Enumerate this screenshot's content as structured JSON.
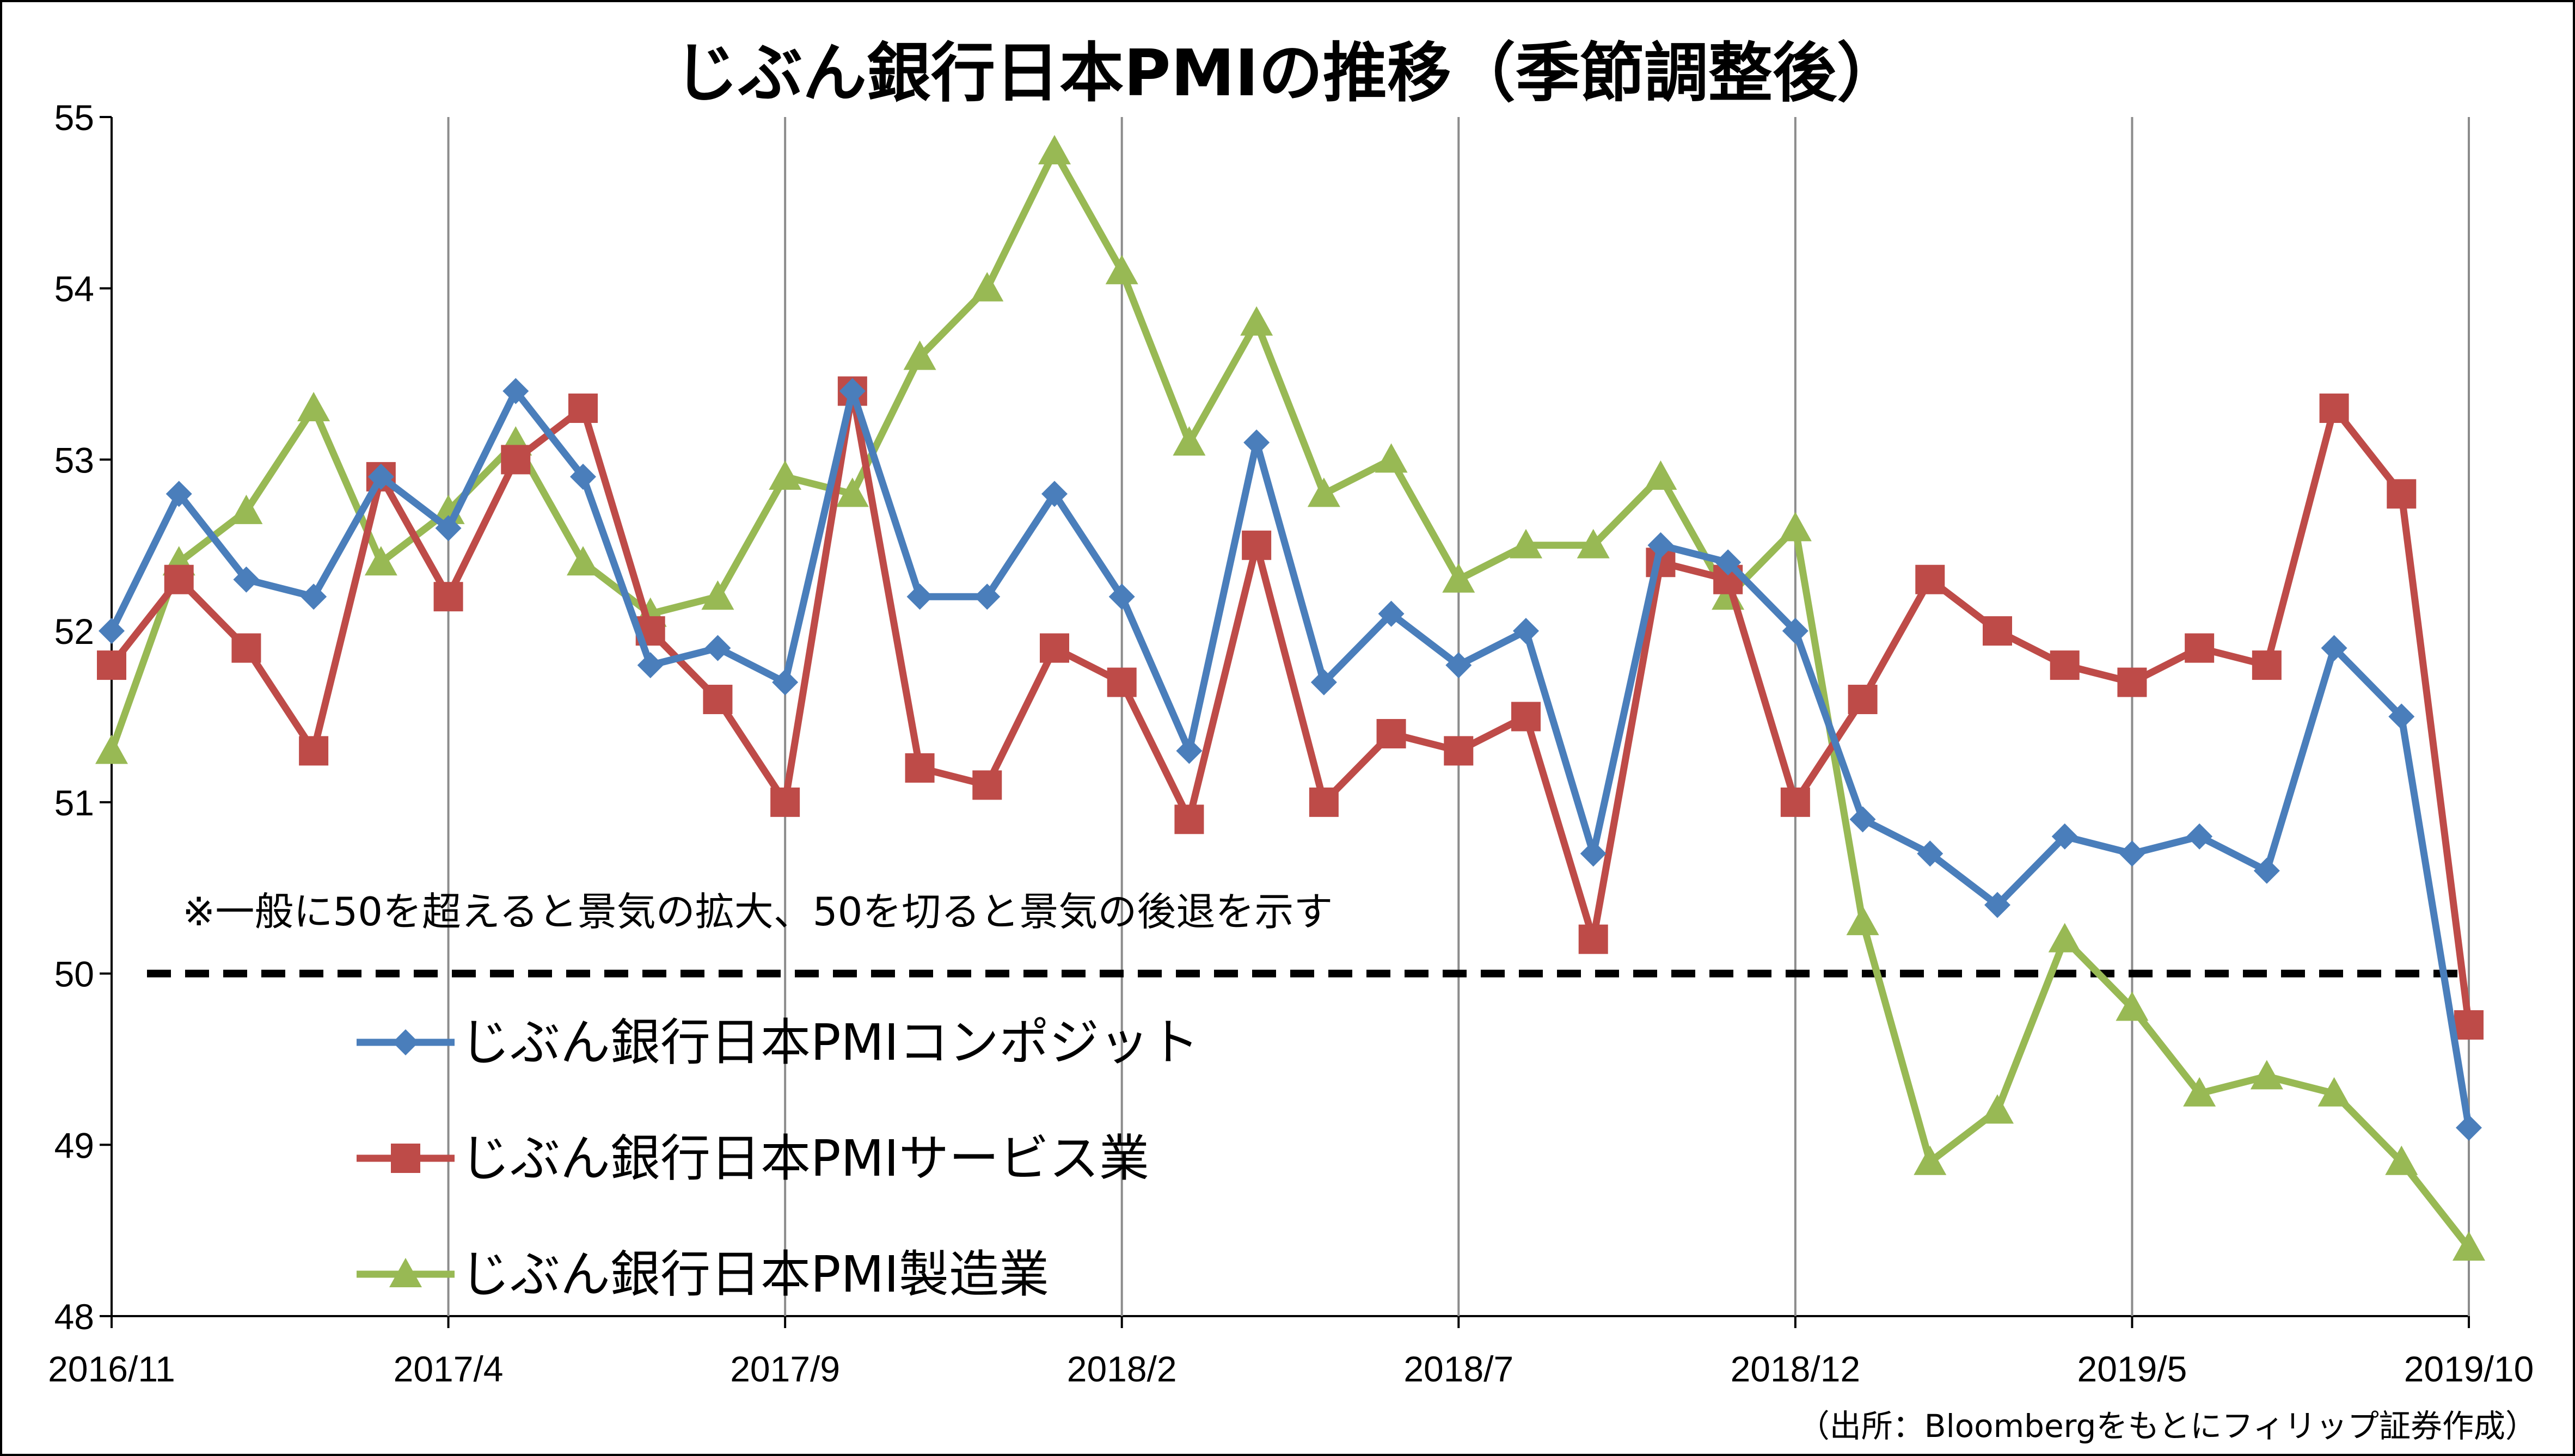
{
  "colors": {
    "composite": "#4a7ebb",
    "services": "#be4b48",
    "manufacturing": "#98b954",
    "grid": "#8c8c8c",
    "threshold": "#000000"
  },
  "chart_data": {
    "type": "line",
    "title": "じぶん銀行日本PMIの推移（季節調整後）",
    "xlabel": "",
    "ylabel": "",
    "ylim": [
      48,
      55
    ],
    "yticks": [
      "48",
      "49",
      "50",
      "51",
      "52",
      "53",
      "54",
      "55"
    ],
    "x": [
      "2016/11",
      "2016/12",
      "2017/1",
      "2017/2",
      "2017/3",
      "2017/4",
      "2017/5",
      "2017/6",
      "2017/7",
      "2017/8",
      "2017/9",
      "2017/10",
      "2017/11",
      "2017/12",
      "2018/1",
      "2018/2",
      "2018/3",
      "2018/4",
      "2018/5",
      "2018/6",
      "2018/7",
      "2018/8",
      "2018/9",
      "2018/10",
      "2018/11",
      "2018/12",
      "2019/1",
      "2019/2",
      "2019/3",
      "2019/4",
      "2019/5",
      "2019/6",
      "2019/7",
      "2019/8",
      "2019/9",
      "2019/10"
    ],
    "xtick_labels": [
      "2016/11",
      "2017/4",
      "2017/9",
      "2018/2",
      "2018/7",
      "2018/12",
      "2019/5",
      "2019/10"
    ],
    "grid": "vertical",
    "legend_position": "bottom-left",
    "series": [
      {
        "name": "じぶん銀行日本PMIコンポジット",
        "color": "#4a7ebb",
        "marker": "diamond",
        "values": [
          52.0,
          52.8,
          52.3,
          52.2,
          52.9,
          52.6,
          53.4,
          52.9,
          51.8,
          51.9,
          51.7,
          53.4,
          52.2,
          52.2,
          52.8,
          52.2,
          51.3,
          53.1,
          51.7,
          52.1,
          51.8,
          52.0,
          50.7,
          52.5,
          52.4,
          52.0,
          50.9,
          50.7,
          50.4,
          50.8,
          50.7,
          50.8,
          50.6,
          51.9,
          51.5,
          49.1
        ]
      },
      {
        "name": "じぶん銀行日本PMIサービス業",
        "color": "#be4b48",
        "marker": "square",
        "values": [
          51.8,
          52.3,
          51.9,
          51.3,
          52.9,
          52.2,
          53.0,
          53.3,
          52.0,
          51.6,
          51.0,
          53.4,
          51.2,
          51.1,
          51.9,
          51.7,
          50.9,
          52.5,
          51.0,
          51.4,
          51.3,
          51.5,
          50.2,
          52.4,
          52.3,
          51.0,
          51.6,
          52.3,
          52.0,
          51.8,
          51.7,
          51.9,
          51.8,
          53.3,
          52.8,
          49.7
        ]
      },
      {
        "name": "じぶん銀行日本PMI製造業",
        "color": "#98b954",
        "marker": "triangle",
        "values": [
          51.3,
          52.4,
          52.7,
          53.3,
          52.4,
          52.7,
          53.1,
          52.4,
          52.1,
          52.2,
          52.9,
          52.8,
          53.6,
          54.0,
          54.8,
          54.1,
          53.1,
          53.8,
          52.8,
          53.0,
          52.3,
          52.5,
          52.5,
          52.9,
          52.2,
          52.6,
          50.3,
          48.9,
          49.2,
          50.2,
          49.8,
          49.3,
          49.4,
          49.3,
          48.9,
          48.4
        ]
      }
    ],
    "threshold": 50,
    "annotation": "※一般に50を超えると景気の拡大、50を切ると景気の後退を示す",
    "source": "（出所：Bloombergをもとにフィリップ証券作成）"
  }
}
